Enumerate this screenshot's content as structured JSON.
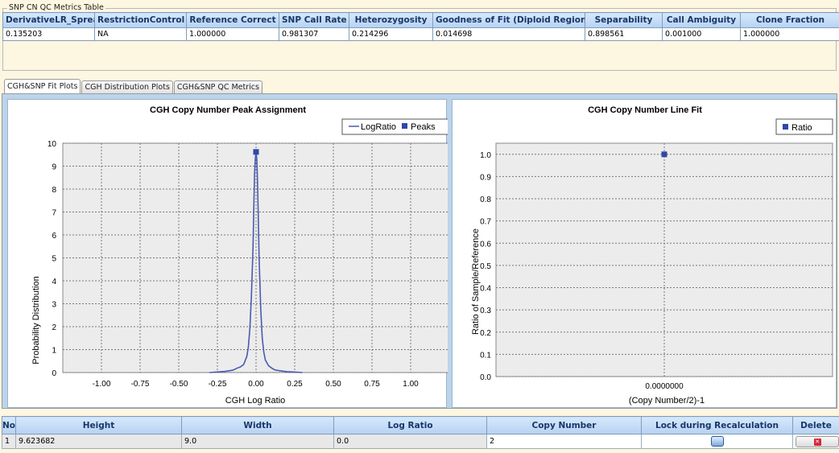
{
  "metrics_table": {
    "title": "SNP CN QC Metrics Table",
    "headers": [
      "DerivativeLR_Spread",
      "RestrictionControl",
      "Reference Correct",
      "SNP Call Rate",
      "Heterozygosity",
      "Goodness of Fit (Diploid Region)",
      "Separability",
      "Call Ambiguity",
      "Clone Fraction"
    ],
    "values": [
      "0.135203",
      "NA",
      "1.000000",
      "0.981307",
      "0.214296",
      "0.014698",
      "0.898561",
      "0.001000",
      "1.000000"
    ]
  },
  "tabs": [
    {
      "label": "CGH&SNP Fit Plots",
      "active": true
    },
    {
      "label": "CGH Distribution Plots",
      "active": false
    },
    {
      "label": "CGH&SNP QC Metrics",
      "active": false
    }
  ],
  "chart_data": [
    {
      "type": "line",
      "title": "CGH Copy Number Peak Assignment",
      "xlabel": "CGH Log Ratio",
      "ylabel": "Probability Distribution",
      "xlim": [
        -1.25,
        1.25
      ],
      "ylim": [
        0,
        10
      ],
      "x_ticks": [
        "-1.00",
        "-0.75",
        "-0.50",
        "-0.25",
        "0.00",
        "0.25",
        "0.50",
        "0.75",
        "1.00"
      ],
      "y_ticks": [
        "0",
        "1",
        "2",
        "3",
        "4",
        "5",
        "6",
        "7",
        "8",
        "9",
        "10"
      ],
      "legend": [
        "LogRatio",
        "Peaks"
      ],
      "legend_position": "top-right",
      "grid": true,
      "series": [
        {
          "name": "LogRatio",
          "color": "#4a5ab0",
          "x": [
            -0.3,
            -0.2,
            -0.15,
            -0.12,
            -0.1,
            -0.08,
            -0.06,
            -0.05,
            -0.04,
            -0.03,
            -0.02,
            -0.015,
            -0.01,
            -0.005,
            0.0,
            0.005,
            0.01,
            0.015,
            0.02,
            0.03,
            0.04,
            0.05,
            0.06,
            0.08,
            0.1,
            0.12,
            0.15,
            0.2,
            0.25,
            0.3
          ],
          "y": [
            0,
            0.05,
            0.1,
            0.2,
            0.25,
            0.35,
            0.7,
            1.1,
            1.9,
            3.3,
            5.4,
            7.0,
            8.6,
            9.3,
            9.6,
            9.3,
            8.2,
            6.6,
            5.0,
            2.8,
            1.5,
            0.9,
            0.55,
            0.3,
            0.2,
            0.12,
            0.08,
            0.04,
            0.02,
            0
          ]
        },
        {
          "name": "Peaks",
          "color": "#3048a8",
          "x": [
            0.0
          ],
          "y": [
            9.62
          ]
        }
      ]
    },
    {
      "type": "scatter",
      "title": "CGH Copy Number Line Fit",
      "xlabel": "(Copy Number/2)-1",
      "ylabel": "Ratio of Sample/Reference",
      "ylim": [
        0,
        1.05
      ],
      "x_ticks": [
        "0.0000000"
      ],
      "y_ticks": [
        "0.0",
        "0.1",
        "0.2",
        "0.3",
        "0.4",
        "0.5",
        "0.6",
        "0.7",
        "0.8",
        "0.9",
        "1.0"
      ],
      "legend": [
        "Ratio"
      ],
      "legend_position": "top-right",
      "grid": true,
      "series": [
        {
          "name": "Ratio",
          "color": "#3048a8",
          "x": [
            0.0
          ],
          "y": [
            1.0
          ]
        }
      ]
    }
  ],
  "peaks_table": {
    "headers": [
      "No",
      "Height",
      "Width",
      "Log Ratio",
      "Copy Number",
      "Lock during Recalculation",
      "Delete"
    ],
    "rows": [
      {
        "no": "1",
        "height": "9.623682",
        "width": "9.0",
        "log_ratio": "0.0",
        "copy_number": "2"
      }
    ]
  },
  "colors": {
    "accent": "#3048a8",
    "header_bg": "#c6dcf6",
    "panel_bg": "#bcd4ea"
  }
}
